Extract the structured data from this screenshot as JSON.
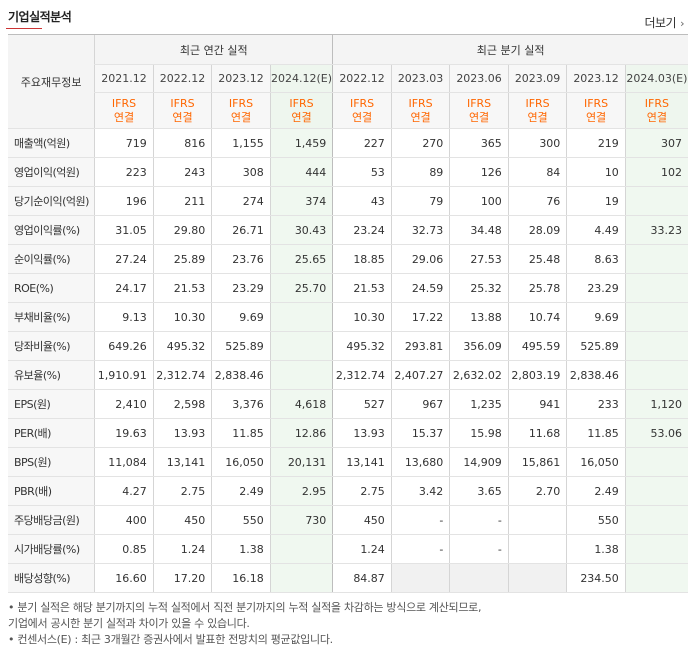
{
  "header": {
    "title": "기업실적분석",
    "more_label": "더보기"
  },
  "table": {
    "corner_label": "주요재무정보",
    "groups": [
      "최근 연간 실적",
      "최근 분기 실적"
    ],
    "columns": [
      "2021.12",
      "2022.12",
      "2023.12",
      "2024.12(E)",
      "2022.12",
      "2023.03",
      "2023.06",
      "2023.09",
      "2023.12",
      "2024.03(E)"
    ],
    "ifrs_top": "IFRS",
    "ifrs_bottom": "연결",
    "rows": [
      {
        "label": "매출액(억원)",
        "values": [
          "719",
          "816",
          "1,155",
          "1,459",
          "227",
          "270",
          "365",
          "300",
          "219",
          "307"
        ]
      },
      {
        "label": "영업이익(억원)",
        "values": [
          "223",
          "243",
          "308",
          "444",
          "53",
          "89",
          "126",
          "84",
          "10",
          "102"
        ]
      },
      {
        "label": "당기순이익(억원)",
        "values": [
          "196",
          "211",
          "274",
          "374",
          "43",
          "79",
          "100",
          "76",
          "19",
          ""
        ]
      },
      {
        "label": "영업이익률(%)",
        "values": [
          "31.05",
          "29.80",
          "26.71",
          "30.43",
          "23.24",
          "32.73",
          "34.48",
          "28.09",
          "4.49",
          "33.23"
        ]
      },
      {
        "label": "순이익률(%)",
        "values": [
          "27.24",
          "25.89",
          "23.76",
          "25.65",
          "18.85",
          "29.06",
          "27.53",
          "25.48",
          "8.63",
          ""
        ]
      },
      {
        "label": "ROE(%)",
        "values": [
          "24.17",
          "21.53",
          "23.29",
          "25.70",
          "21.53",
          "24.59",
          "25.32",
          "25.78",
          "23.29",
          ""
        ]
      },
      {
        "label": "부채비율(%)",
        "values": [
          "9.13",
          "10.30",
          "9.69",
          "",
          "10.30",
          "17.22",
          "13.88",
          "10.74",
          "9.69",
          ""
        ]
      },
      {
        "label": "당좌비율(%)",
        "values": [
          "649.26",
          "495.32",
          "525.89",
          "",
          "495.32",
          "293.81",
          "356.09",
          "495.59",
          "525.89",
          ""
        ]
      },
      {
        "label": "유보율(%)",
        "values": [
          "1,910.91",
          "2,312.74",
          "2,838.46",
          "",
          "2,312.74",
          "2,407.27",
          "2,632.02",
          "2,803.19",
          "2,838.46",
          ""
        ]
      },
      {
        "label": "EPS(원)",
        "values": [
          "2,410",
          "2,598",
          "3,376",
          "4,618",
          "527",
          "967",
          "1,235",
          "941",
          "233",
          "1,120"
        ]
      },
      {
        "label": "PER(배)",
        "values": [
          "19.63",
          "13.93",
          "11.85",
          "12.86",
          "13.93",
          "15.37",
          "15.98",
          "11.68",
          "11.85",
          "53.06"
        ]
      },
      {
        "label": "BPS(원)",
        "values": [
          "11,084",
          "13,141",
          "16,050",
          "20,131",
          "13,141",
          "13,680",
          "14,909",
          "15,861",
          "16,050",
          ""
        ]
      },
      {
        "label": "PBR(배)",
        "values": [
          "4.27",
          "2.75",
          "2.49",
          "2.95",
          "2.75",
          "3.42",
          "3.65",
          "2.70",
          "2.49",
          ""
        ]
      },
      {
        "label": "주당배당금(원)",
        "values": [
          "400",
          "450",
          "550",
          "730",
          "450",
          "-",
          "-",
          "",
          "550",
          ""
        ]
      },
      {
        "label": "시가배당률(%)",
        "values": [
          "0.85",
          "1.24",
          "1.38",
          "",
          "1.24",
          "-",
          "-",
          "",
          "1.38",
          ""
        ]
      },
      {
        "label": "배당성향(%)",
        "values": [
          "16.60",
          "17.20",
          "16.18",
          "",
          "84.87",
          "",
          "",
          "",
          "234.50",
          ""
        ]
      }
    ]
  },
  "notes": {
    "line1": "• 분기 실적은 해당 분기까지의 누적 실적에서 직전 분기까지의 누적 실적을 차감하는 방식으로 계산되므로,",
    "line2": "   기업에서 공시한 분기 실적과 차이가 있을 수 있습니다.",
    "line3": "• 컨센서스(E) : 최근 3개월간 증권사에서 발표한 전망치의 평균값입니다."
  }
}
